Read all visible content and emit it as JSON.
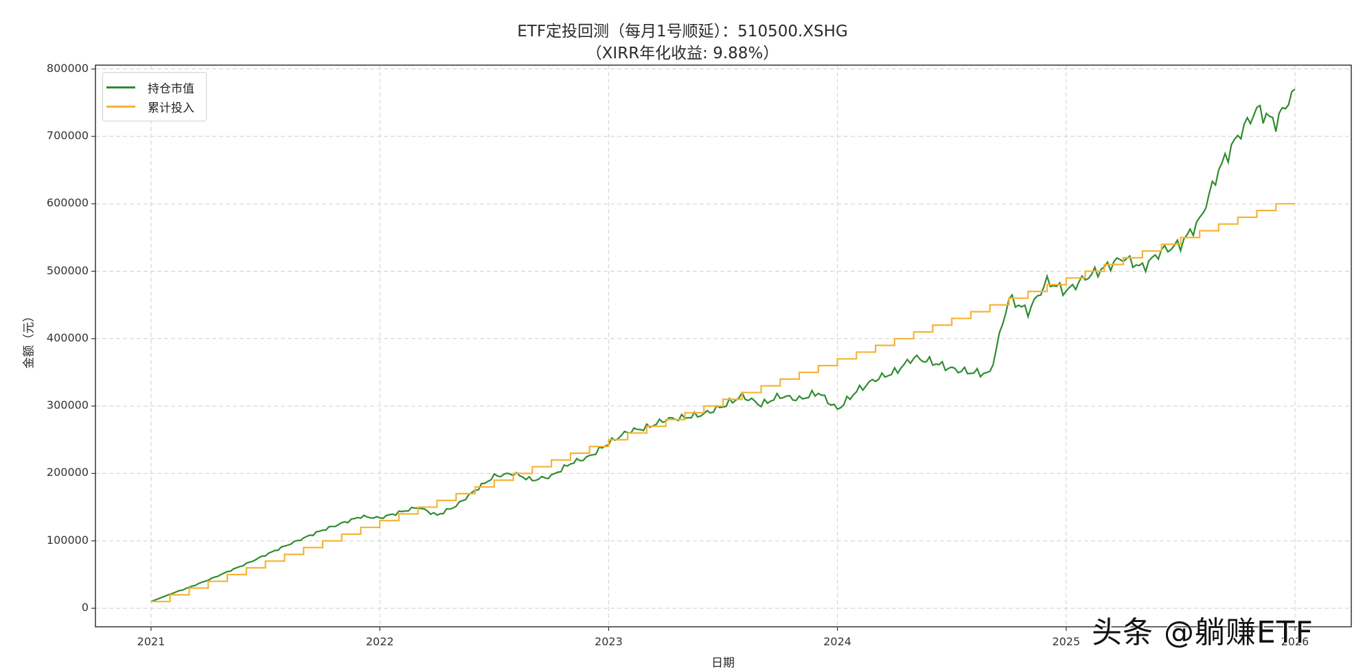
{
  "title_line1": "ETF定投回测（每月1号顺延）：510500.XSHG",
  "title_line2": "（XIRR年化收益: 9.88%）",
  "ylabel": "金额（元）",
  "xlabel": "日期",
  "watermark": "头条 @躺赚ETF",
  "legend": [
    {
      "label": "持仓市值",
      "color": "#2e8b2e"
    },
    {
      "label": "累计投入",
      "color": "#f5b335"
    }
  ],
  "yticks": [
    "0",
    "100000",
    "200000",
    "300000",
    "400000",
    "500000",
    "600000",
    "700000",
    "800000"
  ],
  "xticks": [
    "2021",
    "2022",
    "2023",
    "2024",
    "2025",
    "2026"
  ],
  "chart_data": {
    "type": "line",
    "title": "ETF定投回测（每月1号顺延）：510500.XSHG （XIRR年化收益: 9.88%）",
    "xlabel": "日期",
    "ylabel": "金额（元）",
    "ylim": [
      -25000,
      810000
    ],
    "xlim": [
      "2020-10",
      "2026-03"
    ],
    "grid": true,
    "legend_position": "upper left",
    "x": [
      "2021-01",
      "2021-02",
      "2021-03",
      "2021-04",
      "2021-05",
      "2021-06",
      "2021-07",
      "2021-08",
      "2021-09",
      "2021-10",
      "2021-11",
      "2021-12",
      "2022-01",
      "2022-02",
      "2022-03",
      "2022-04",
      "2022-05",
      "2022-06",
      "2022-07",
      "2022-08",
      "2022-09",
      "2022-10",
      "2022-11",
      "2022-12",
      "2023-01",
      "2023-02",
      "2023-03",
      "2023-04",
      "2023-05",
      "2023-06",
      "2023-07",
      "2023-08",
      "2023-09",
      "2023-10",
      "2023-11",
      "2023-12",
      "2024-01",
      "2024-02",
      "2024-03",
      "2024-04",
      "2024-05",
      "2024-06",
      "2024-07",
      "2024-08",
      "2024-09",
      "2024-10",
      "2024-11",
      "2024-12",
      "2025-01",
      "2025-02",
      "2025-03",
      "2025-04",
      "2025-05",
      "2025-06",
      "2025-07",
      "2025-08",
      "2025-09",
      "2025-10",
      "2025-11",
      "2025-12",
      "2026-01"
    ],
    "series": [
      {
        "name": "持仓市值",
        "color": "#2e8b2e",
        "values": [
          10000,
          21000,
          31000,
          42000,
          54000,
          66000,
          79000,
          92000,
          104000,
          116000,
          126000,
          136000,
          134000,
          142000,
          150000,
          138000,
          152000,
          175000,
          196000,
          200000,
          190000,
          196000,
          215000,
          225000,
          245000,
          262000,
          268000,
          280000,
          283000,
          288000,
          300000,
          315000,
          302000,
          315000,
          310000,
          320000,
          295000,
          322000,
          340000,
          350000,
          372000,
          365000,
          355000,
          350000,
          348000,
          460000,
          440000,
          485000,
          470000,
          490000,
          505000,
          520000,
          505000,
          530000,
          540000,
          575000,
          650000,
          700000,
          740000,
          720000,
          770000
        ]
      },
      {
        "name": "累计投入",
        "color": "#f5b335",
        "values": [
          10000,
          20000,
          30000,
          40000,
          50000,
          60000,
          70000,
          80000,
          90000,
          100000,
          110000,
          120000,
          130000,
          140000,
          150000,
          160000,
          170000,
          180000,
          190000,
          200000,
          210000,
          220000,
          230000,
          240000,
          250000,
          260000,
          270000,
          280000,
          290000,
          300000,
          310000,
          320000,
          330000,
          340000,
          350000,
          360000,
          370000,
          380000,
          390000,
          400000,
          410000,
          420000,
          430000,
          440000,
          450000,
          460000,
          470000,
          480000,
          490000,
          500000,
          510000,
          520000,
          530000,
          540000,
          550000,
          560000,
          570000,
          580000,
          590000,
          600000,
          600000
        ]
      }
    ]
  }
}
